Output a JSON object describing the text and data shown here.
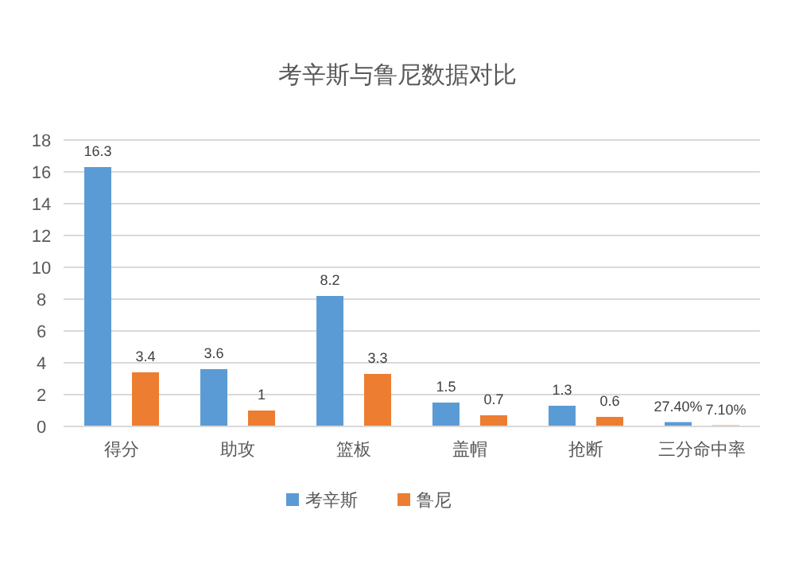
{
  "chart_data": {
    "type": "bar",
    "title": "考辛斯与鲁尼数据对比",
    "categories": [
      "得分",
      "助攻",
      "篮板",
      "盖帽",
      "抢断",
      "三分命中率"
    ],
    "series": [
      {
        "name": "考辛斯",
        "color": "#5b9bd5",
        "values": [
          16.3,
          3.6,
          8.2,
          1.5,
          1.3,
          0.274
        ],
        "value_labels": [
          "16.3",
          "3.6",
          "8.2",
          "1.5",
          "1.3",
          "27.40%"
        ]
      },
      {
        "name": "鲁尼",
        "color": "#ed7d31",
        "values": [
          3.4,
          1,
          3.3,
          0.7,
          0.6,
          0.071
        ],
        "value_labels": [
          "3.4",
          "1",
          "3.3",
          "0.7",
          "0.6",
          "7.10%"
        ]
      }
    ],
    "ylim": [
      0,
      18
    ],
    "yticks": [
      0,
      2,
      4,
      6,
      8,
      10,
      12,
      14,
      16,
      18
    ],
    "grid": "y",
    "legend": "bottom"
  }
}
